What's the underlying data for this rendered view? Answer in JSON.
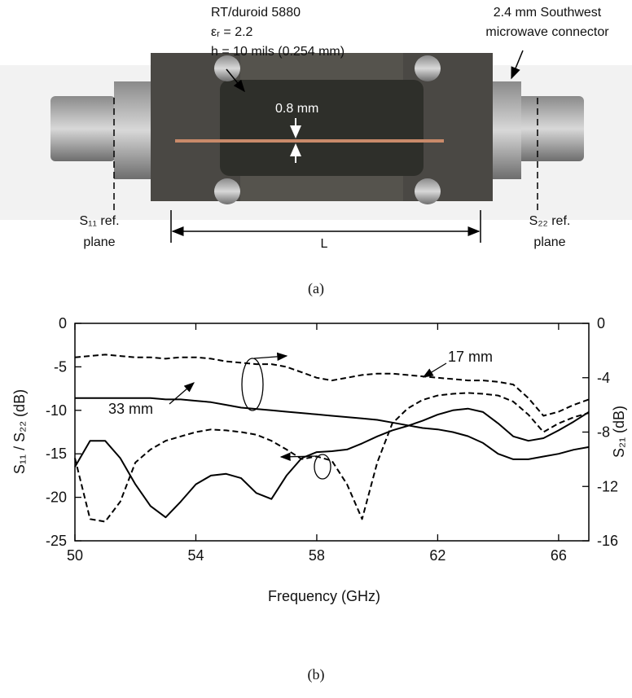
{
  "photo": {
    "substrate": [
      "RT/duroid 5880",
      "εᵣ = 2.2",
      "h = 10 mils (0.254 mm)"
    ],
    "connector": [
      "2.4 mm Southwest",
      "microwave connector"
    ],
    "width_label": "0.8 mm",
    "s11_label": [
      "S₁₁ ref.",
      "plane"
    ],
    "s22_label": [
      "S₂₂ ref.",
      "plane"
    ],
    "length_label": "L",
    "caption": "(a)"
  },
  "chart_data": {
    "type": "line",
    "xlabel": "Frequency (GHz)",
    "ylabel": "S₁₁ / S₂₂ (dB)",
    "y2label": "S₂₁ (dB)",
    "x": [
      50,
      50.5,
      51,
      51.5,
      52,
      52.5,
      53,
      53.5,
      54,
      54.5,
      55,
      55.5,
      56,
      56.5,
      57,
      57.5,
      58,
      58.5,
      59,
      59.5,
      60,
      60.5,
      61,
      61.5,
      62,
      62.5,
      63,
      63.5,
      64,
      64.5,
      65,
      65.5,
      66,
      66.5,
      67
    ],
    "xlim": [
      50,
      67
    ],
    "xticks": [
      50,
      54,
      58,
      62,
      66
    ],
    "ylim": [
      -25,
      0
    ],
    "yticks": [
      0,
      -5,
      -10,
      -15,
      -20,
      -25
    ],
    "y2lim": [
      -16,
      0
    ],
    "y2ticks": [
      0,
      -4,
      -8,
      -12,
      -16
    ],
    "series": [
      {
        "color": "#000000",
        "dash": "dashed",
        "axis": "y2",
        "values": [
          -2.5,
          -2.4,
          -2.3,
          -2.4,
          -2.5,
          -2.5,
          -2.6,
          -2.5,
          -2.5,
          -2.6,
          -2.8,
          -2.9,
          -3.0,
          -3.0,
          -3.2,
          -3.6,
          -4.0,
          -4.2,
          -4.0,
          -3.8,
          -3.7,
          -3.7,
          -3.8,
          -3.9,
          -4.0,
          -4.1,
          -4.2,
          -4.2,
          -4.3,
          -4.5,
          -5.5,
          -6.8,
          -6.5,
          -6.0,
          -5.6
        ]
      },
      {
        "color": "#000000",
        "dash": "solid",
        "axis": "y2",
        "values": [
          -5.5,
          -5.5,
          -5.5,
          -5.5,
          -5.5,
          -5.5,
          -5.6,
          -5.6,
          -5.7,
          -5.8,
          -6.0,
          -6.2,
          -6.3,
          -6.4,
          -6.5,
          -6.6,
          -6.7,
          -6.8,
          -6.9,
          -7.0,
          -7.1,
          -7.3,
          -7.5,
          -7.7,
          -7.8,
          -8.0,
          -8.3,
          -8.8,
          -9.6,
          -10.0,
          -10.0,
          -9.8,
          -9.6,
          -9.3,
          -9.1
        ]
      },
      {
        "color": "#000000",
        "dash": "dashed",
        "values": [
          -15.5,
          -22.5,
          -22.8,
          -20.5,
          -16,
          -14.5,
          -13.5,
          -13,
          -12.5,
          -12.2,
          -12.3,
          -12.5,
          -12.8,
          -13.5,
          -14.5,
          -15.6,
          -15.3,
          -15.8,
          -18.5,
          -22.5,
          -16,
          -11.5,
          -9.8,
          -8.8,
          -8.3,
          -8.1,
          -8.0,
          -8.1,
          -8.3,
          -9.0,
          -10.5,
          -12.5,
          -11.5,
          -10.8,
          -10.3
        ]
      },
      {
        "color": "#000000",
        "dash": "solid",
        "values": [
          -16.5,
          -13.5,
          -13.5,
          -15.5,
          -18.5,
          -21,
          -22.3,
          -20.5,
          -18.5,
          -17.5,
          -17.3,
          -17.8,
          -19.5,
          -20.2,
          -17.5,
          -15.5,
          -14.8,
          -14.7,
          -14.5,
          -13.8,
          -13.0,
          -12.3,
          -11.8,
          -11.2,
          -10.5,
          -10,
          -9.8,
          -10.2,
          -11.5,
          -13,
          -13.5,
          -13.2,
          -12.3,
          -11.3,
          -10.2
        ]
      }
    ],
    "annotations": [
      "17 mm",
      "33 mm"
    ],
    "caption": "(b)"
  }
}
